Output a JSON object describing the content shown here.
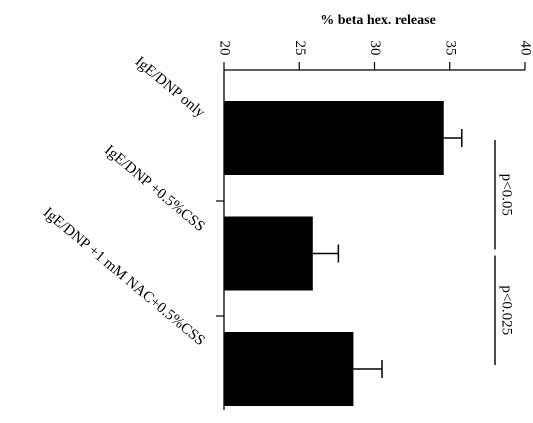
{
  "chart_data": {
    "type": "bar",
    "orientation": "horizontal",
    "title": "% beta hex. release",
    "xlabel": "% beta hex. release",
    "ylabel": "",
    "xlim": [
      20,
      40
    ],
    "ticks": [
      "20",
      "25",
      "30",
      "35",
      "40"
    ],
    "tick_values": [
      20,
      25,
      30,
      35,
      40
    ],
    "categories": [
      "IgE/DNP only",
      "IgE/DNP +0.5%CSS",
      "IgE/DNP +1 mM NAC+0.5%CSS"
    ],
    "values": [
      34.6,
      25.9,
      28.6
    ],
    "errors": [
      1.2,
      1.7,
      1.9
    ],
    "bar_color": "#000000",
    "annotations": [
      {
        "text": "p<0.05",
        "between": [
          0,
          1
        ]
      },
      {
        "text": "p<0.025",
        "between": [
          1,
          2
        ]
      }
    ]
  }
}
